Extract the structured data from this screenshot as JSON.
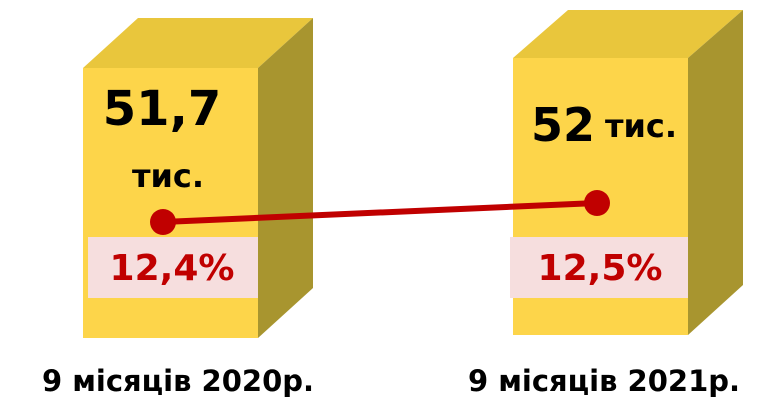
{
  "items": [
    {
      "value": "51,7",
      "unit": "тис.",
      "share": "12,4%",
      "period": "9 місяців 2020р."
    },
    {
      "value": "52",
      "unit": "тис.",
      "share": "12,5%",
      "period": "9 місяців 2021р."
    }
  ]
}
